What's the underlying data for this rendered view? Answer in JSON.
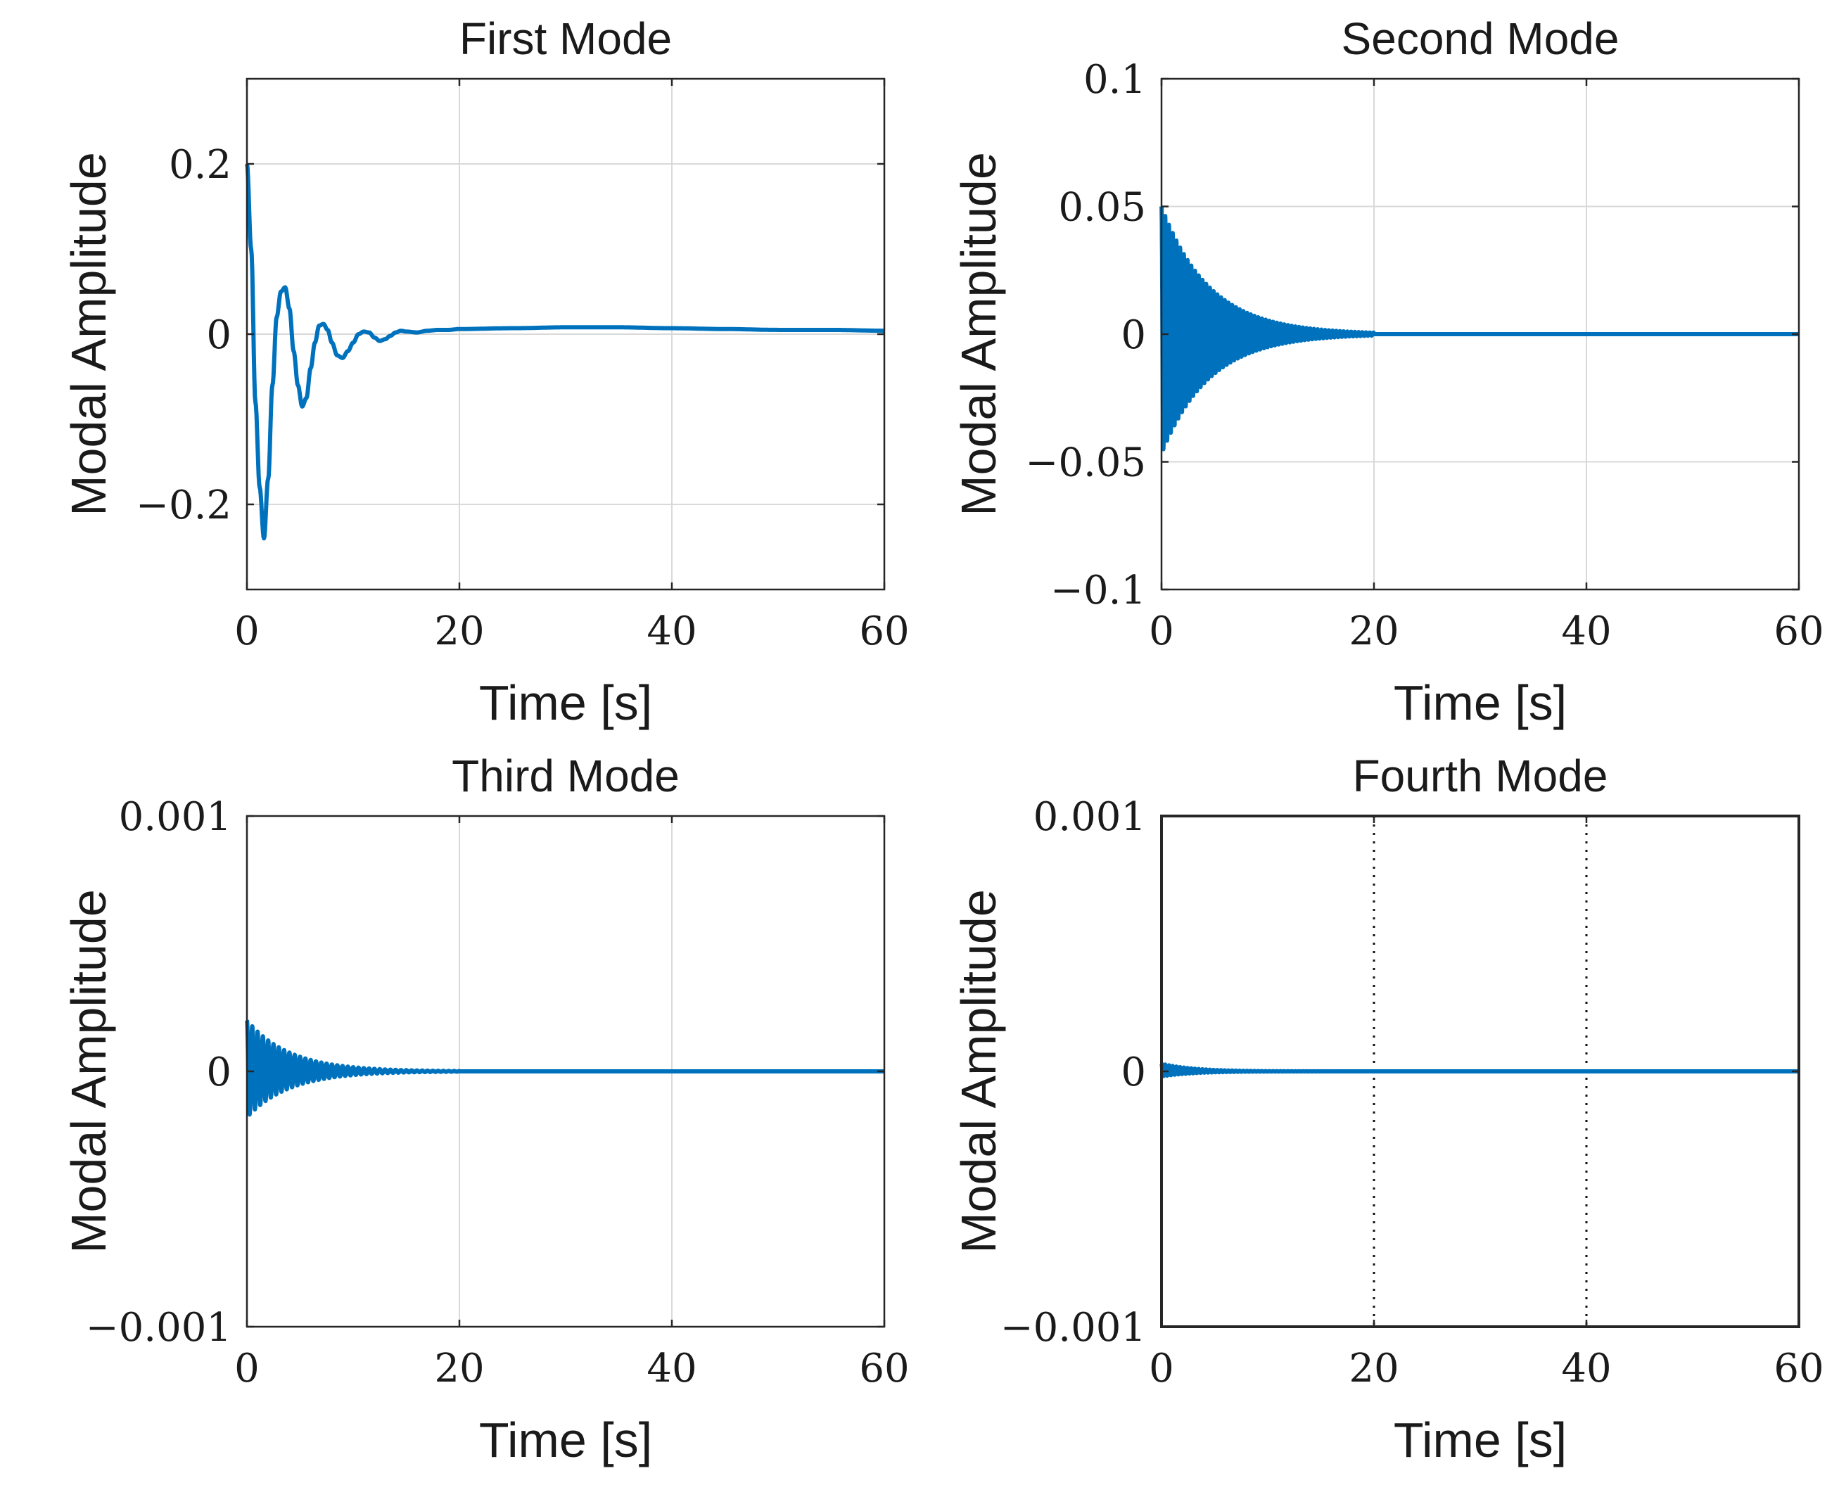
{
  "figure": {
    "line_color": "#0072bd",
    "axis_color": "#262626",
    "grid_color": "#d9d9d9",
    "background": "#ffffff"
  },
  "chart_data": [
    {
      "type": "line",
      "title": "First Mode",
      "xlabel": "Time [s]",
      "ylabel": "Modal Amplitude",
      "xlim": [
        0,
        60
      ],
      "ylim": [
        -0.3,
        0.3
      ],
      "xticks": [
        0,
        20,
        40,
        60
      ],
      "xtick_labels": [
        "0",
        "20",
        "40",
        "60"
      ],
      "yticks": [
        -0.2,
        0,
        0.2
      ],
      "ytick_labels": [
        "−0.2",
        "0",
        "0.2"
      ],
      "grid": "solid",
      "series": [
        {
          "x": [
            0,
            0.4,
            0.8,
            1.2,
            1.6,
            2.0,
            2.4,
            2.8,
            3.2,
            3.6,
            4.0,
            4.4,
            4.8,
            5.2,
            5.6,
            6.0,
            6.4,
            6.8,
            7.2,
            7.6,
            8.0,
            8.5,
            9.0,
            9.5,
            10.0,
            10.5,
            11.0,
            11.5,
            12.0,
            12.5,
            13.0,
            13.5,
            14.0,
            14.5,
            15.0,
            16.0,
            17.0,
            18.0,
            19.0,
            20.0,
            25.0,
            30.0,
            35.0,
            40.0,
            45.0,
            50.0,
            55.0,
            60.0
          ],
          "y": [
            0.2,
            0.1,
            -0.08,
            -0.18,
            -0.24,
            -0.17,
            -0.06,
            0.02,
            0.05,
            0.055,
            0.03,
            -0.02,
            -0.06,
            -0.085,
            -0.075,
            -0.04,
            -0.01,
            0.01,
            0.012,
            0.005,
            -0.01,
            -0.025,
            -0.028,
            -0.02,
            -0.01,
            0.0,
            0.003,
            0.002,
            -0.004,
            -0.008,
            -0.006,
            -0.002,
            0.002,
            0.004,
            0.003,
            0.002,
            0.004,
            0.005,
            0.005,
            0.006,
            0.007,
            0.008,
            0.008,
            0.007,
            0.006,
            0.005,
            0.005,
            0.004
          ]
        }
      ]
    },
    {
      "type": "line",
      "title": "Second Mode",
      "xlabel": "Time [s]",
      "ylabel": "Modal Amplitude",
      "xlim": [
        0,
        60
      ],
      "ylim": [
        -0.1,
        0.1
      ],
      "xticks": [
        0,
        20,
        40,
        60
      ],
      "xtick_labels": [
        "0",
        "20",
        "40",
        "60"
      ],
      "yticks": [
        -0.1,
        -0.05,
        0,
        0.05,
        0.1
      ],
      "ytick_labels": [
        "−0.1",
        "−0.05",
        "0",
        "0.05",
        "0.1"
      ],
      "grid": "solid",
      "series": [
        {
          "envelope": {
            "peak_upper": 0.05,
            "peak_lower": -0.047,
            "decay_time_s": 4.5,
            "period_s": 0.35,
            "settled_after_s": 20,
            "settled_value": 0
          }
        }
      ]
    },
    {
      "type": "line",
      "title": "Third Mode",
      "xlabel": "Time [s]",
      "ylabel": "Modal Amplitude",
      "xlim": [
        0,
        60
      ],
      "ylim": [
        -0.001,
        0.001
      ],
      "xticks": [
        0,
        20,
        40,
        60
      ],
      "xtick_labels": [
        "0",
        "20",
        "40",
        "60"
      ],
      "yticks": [
        -0.001,
        0,
        0.001
      ],
      "ytick_labels": [
        "−0.001",
        "0",
        "0.001"
      ],
      "grid": "solid",
      "series": [
        {
          "envelope": {
            "peak_upper": 0.0002,
            "peak_lower": -0.00018,
            "decay_time_s": 4.0,
            "period_s": 0.5,
            "settled_after_s": 20,
            "settled_value": 0
          }
        }
      ]
    },
    {
      "type": "line",
      "title": "Fourth Mode",
      "xlabel": "Time [s]",
      "ylabel": "Modal Amplitude",
      "xlim": [
        0,
        60
      ],
      "ylim": [
        -0.001,
        0.001
      ],
      "xticks": [
        0,
        20,
        40,
        60
      ],
      "xtick_labels": [
        "0",
        "20",
        "40",
        "60"
      ],
      "yticks": [
        -0.001,
        0,
        0.001
      ],
      "ytick_labels": [
        "−0.001",
        "0",
        "0.001"
      ],
      "grid": "dotted",
      "series": [
        {
          "envelope": {
            "peak_upper": 3e-05,
            "peak_lower": -2e-05,
            "decay_time_s": 3.0,
            "period_s": 0.35,
            "settled_after_s": 20,
            "settled_value": 0
          }
        }
      ]
    }
  ]
}
